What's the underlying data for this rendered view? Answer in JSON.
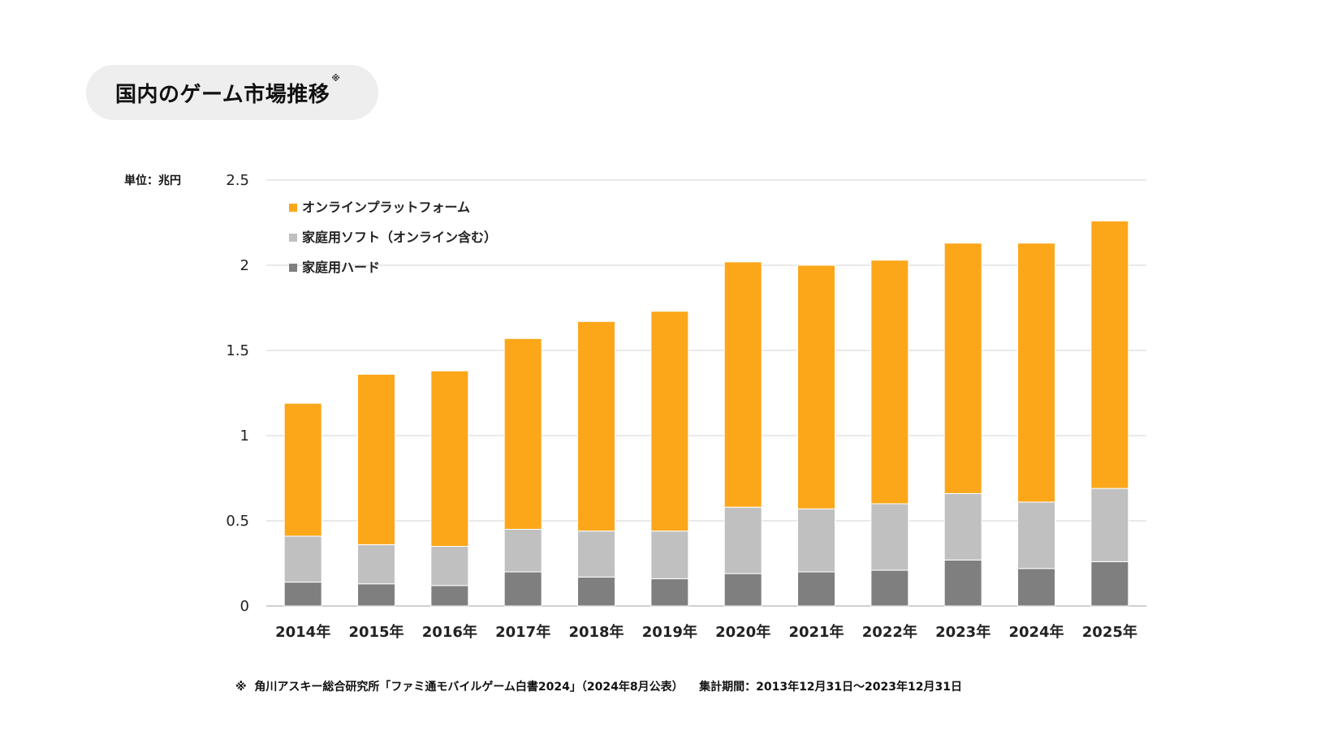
{
  "title": "国内のゲーム市場推移",
  "title_mark": "※",
  "unit_label": "単位：兆円",
  "footnote": "※  角川アスキー総合研究所「ファミ通モバイルゲーム白書2024」（2024年8月公表）    集計期間：2013年12月31日～2023年12月31日",
  "chart_data": {
    "type": "bar",
    "stacked": true,
    "categories": [
      "2014年",
      "2015年",
      "2016年",
      "2017年",
      "2018年",
      "2019年",
      "2020年",
      "2021年",
      "2022年",
      "2023年",
      "2024年",
      "2025年"
    ],
    "series": [
      {
        "name": "家庭用ハード",
        "color": "#7f7f7f",
        "values": [
          0.14,
          0.13,
          0.12,
          0.2,
          0.17,
          0.16,
          0.19,
          0.2,
          0.21,
          0.27,
          0.22,
          0.26
        ]
      },
      {
        "name": "家庭用ソフト（オンライン含む）",
        "color": "#c0c0c0",
        "values": [
          0.27,
          0.23,
          0.23,
          0.25,
          0.27,
          0.28,
          0.39,
          0.37,
          0.39,
          0.39,
          0.39,
          0.43
        ]
      },
      {
        "name": "オンラインプラットフォーム",
        "color": "#fca71a",
        "values": [
          0.78,
          1.0,
          1.03,
          1.12,
          1.23,
          1.29,
          1.44,
          1.43,
          1.43,
          1.47,
          1.52,
          1.57
        ]
      }
    ],
    "legend_order": [
      "オンラインプラットフォーム",
      "家庭用ソフト（オンライン含む）",
      "家庭用ハード"
    ],
    "legend_position": "top-left",
    "y_ticks": [
      "0",
      "0.5",
      "1",
      "1.5",
      "2",
      "2.5"
    ],
    "ylim": [
      0,
      2.5
    ],
    "grid": true
  }
}
